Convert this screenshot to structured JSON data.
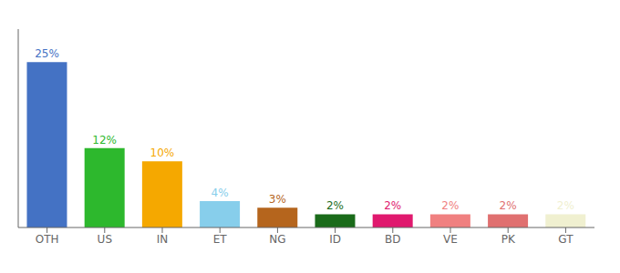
{
  "chart_data": {
    "type": "bar",
    "categories": [
      "OTH",
      "US",
      "IN",
      "ET",
      "NG",
      "ID",
      "BD",
      "VE",
      "PK",
      "GT"
    ],
    "values": [
      25,
      12,
      10,
      4,
      3,
      2,
      2,
      2,
      2,
      2
    ],
    "value_labels": [
      "25%",
      "12%",
      "10%",
      "4%",
      "3%",
      "2%",
      "2%",
      "2%",
      "2%",
      "2%"
    ],
    "colors": [
      "#4472c4",
      "#2db82d",
      "#f5a800",
      "#87ceeb",
      "#b5651d",
      "#1a6b1a",
      "#e0196e",
      "#f08080",
      "#e07070",
      "#f0f0d0"
    ],
    "ylim": [
      0,
      30
    ],
    "grid": false,
    "data_labels": true,
    "tick_labels": "x"
  }
}
